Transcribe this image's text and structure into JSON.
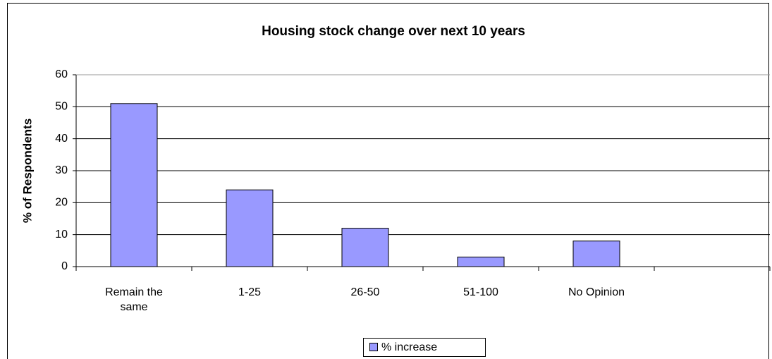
{
  "chart_data": {
    "type": "bar",
    "title": "Housing stock change over next 10 years",
    "y_label": "% of Respondents",
    "categories": [
      "Remain the same",
      "1-25",
      "26-50",
      "51-100",
      "No Opinion",
      null
    ],
    "series": [
      {
        "name": "% increase",
        "color": "#9999ff",
        "values": [
          51,
          24,
          12,
          3,
          8,
          null
        ]
      }
    ],
    "ylim": [
      0,
      60
    ],
    "yticks": [
      0,
      10,
      20,
      30,
      40,
      50,
      60
    ],
    "grid": true,
    "legend": "bottom"
  }
}
